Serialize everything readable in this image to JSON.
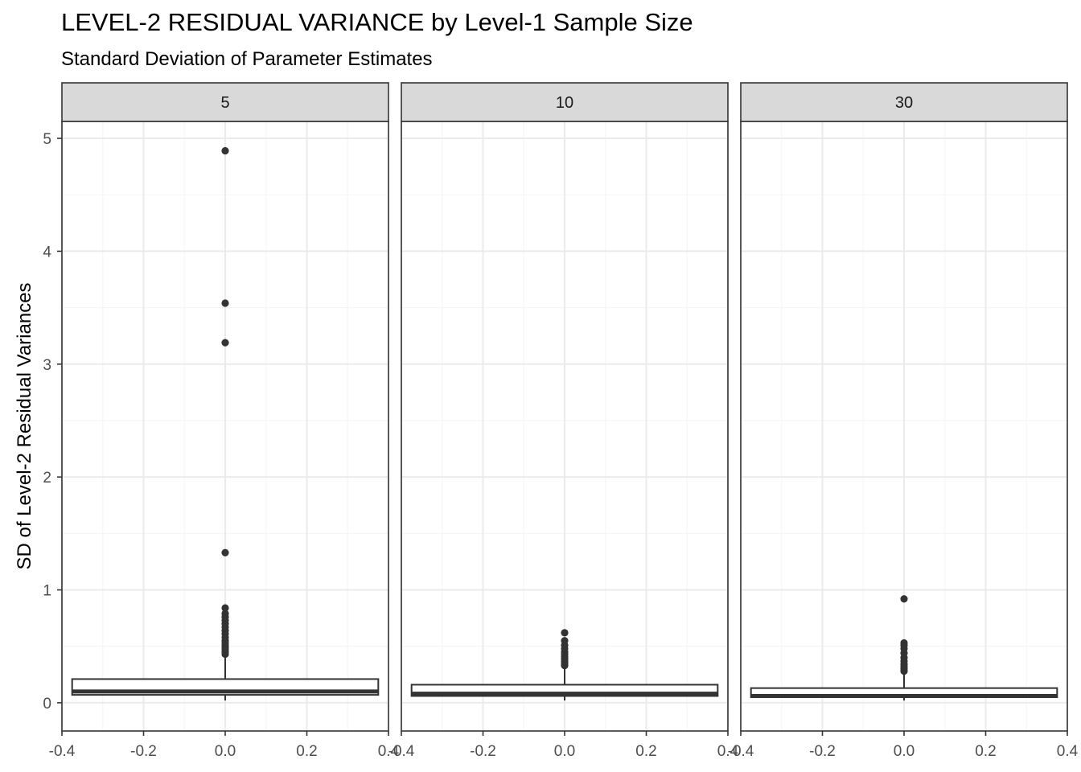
{
  "chart_data": {
    "type": "boxplot",
    "title": "LEVEL-2 RESIDUAL VARIANCE by Level-1 Sample Size",
    "subtitle": "Standard Deviation of Parameter Estimates",
    "ylabel": "SD of Level-2 Residual Variances",
    "xlabel": "",
    "xlim": [
      -0.4,
      0.4
    ],
    "ylim": [
      -0.25,
      5.15
    ],
    "x_ticks": [
      "-0.4",
      "-0.2",
      "0.0",
      "0.2",
      "0.4"
    ],
    "y_ticks": [
      "0",
      "1",
      "2",
      "3",
      "4",
      "5"
    ],
    "grid": true,
    "panels": [
      {
        "label": "5",
        "q1": 0.07,
        "median": 0.1,
        "q3": 0.21,
        "whisker_low": 0.02,
        "whisker_high": 0.42,
        "outliers": [
          0.43,
          0.45,
          0.47,
          0.49,
          0.51,
          0.53,
          0.55,
          0.58,
          0.61,
          0.64,
          0.67,
          0.7,
          0.73,
          0.76,
          0.79,
          0.84,
          1.33,
          3.19,
          3.54,
          4.89
        ]
      },
      {
        "label": "10",
        "q1": 0.06,
        "median": 0.08,
        "q3": 0.16,
        "whisker_low": 0.02,
        "whisker_high": 0.32,
        "outliers": [
          0.33,
          0.35,
          0.37,
          0.39,
          0.41,
          0.43,
          0.45,
          0.48,
          0.51,
          0.55,
          0.62
        ]
      },
      {
        "label": "30",
        "q1": 0.05,
        "median": 0.06,
        "q3": 0.13,
        "whisker_low": 0.02,
        "whisker_high": 0.27,
        "outliers": [
          0.28,
          0.3,
          0.32,
          0.34,
          0.37,
          0.4,
          0.44,
          0.48,
          0.51,
          0.53,
          0.92
        ]
      }
    ],
    "colors": {
      "strip_fill": "#d9d9d9",
      "panel_border": "#333333",
      "grid_major": "#ebebeb",
      "grid_minor": "#f5f5f5",
      "box_line": "#333333",
      "outlier": "#333333",
      "axis_text": "#4d4d4d"
    }
  }
}
